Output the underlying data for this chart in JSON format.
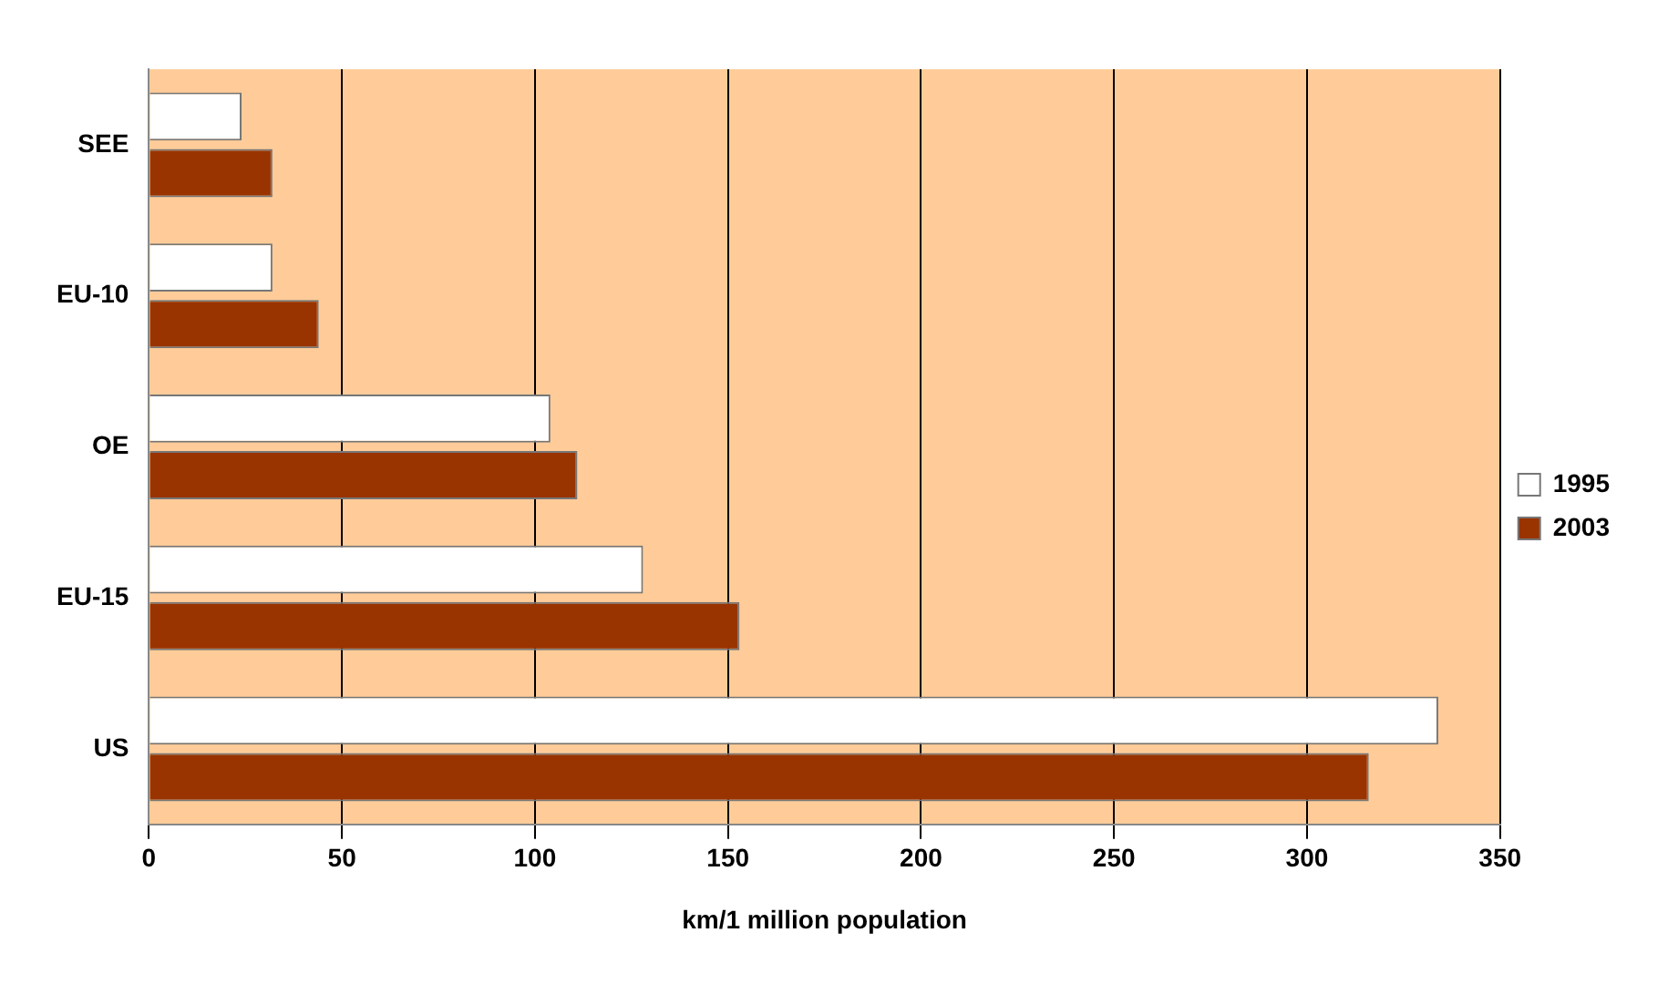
{
  "chart_data": {
    "type": "bar",
    "orientation": "horizontal",
    "xlabel": "km/1 million population",
    "categories": [
      "SEE",
      "EU-10",
      "OE",
      "EU-15",
      "US"
    ],
    "series": [
      {
        "name": "1995",
        "color": "#ffffff",
        "values": [
          24,
          32,
          104,
          128,
          334
        ]
      },
      {
        "name": "2003",
        "color": "#993300",
        "values": [
          32,
          44,
          111,
          153,
          316
        ]
      }
    ],
    "xlim": [
      0,
      350
    ],
    "xticks": [
      0,
      50,
      100,
      150,
      200,
      250,
      300,
      350
    ],
    "grid": "x",
    "legend": "right"
  }
}
